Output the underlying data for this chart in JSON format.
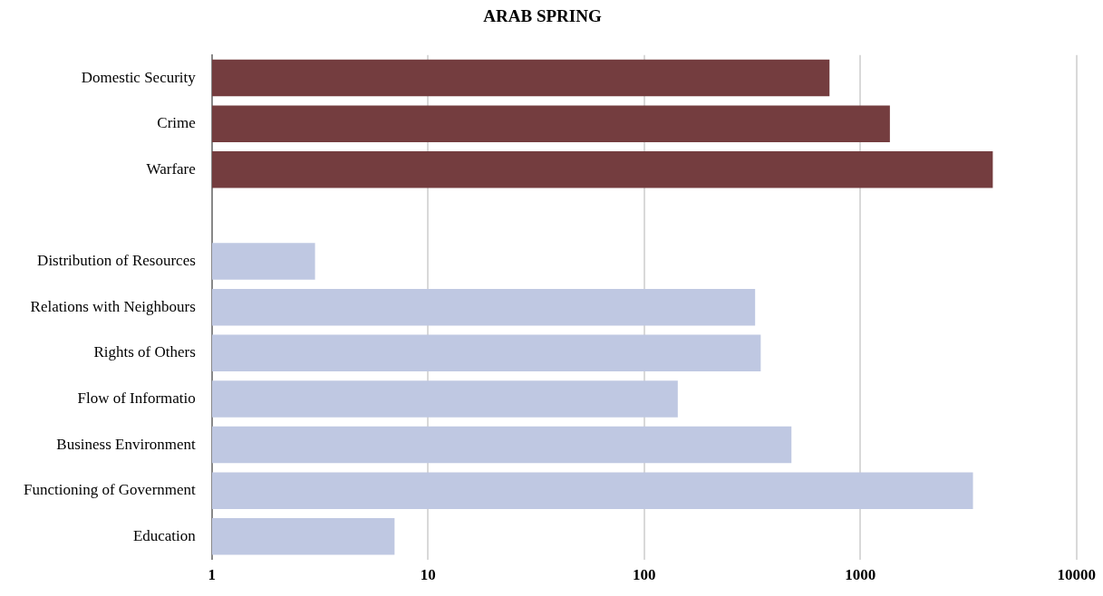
{
  "chart_data": {
    "type": "bar",
    "orientation": "horizontal",
    "title": "ARAB SPRING",
    "categories": [
      "Domestic Security",
      "Crime",
      "Warfare",
      null,
      "Distribution of Resources",
      "Relations with Neighbours",
      "Rights of Others",
      "Flow of Informatio",
      "Business Environment",
      "Functioning of Government",
      "Education"
    ],
    "values": [
      720,
      1370,
      4100,
      null,
      3,
      326,
      346,
      143,
      480,
      3320,
      7
    ],
    "colors": [
      "#743d3f",
      "#743d3f",
      "#743d3f",
      "#743d3f",
      "#bfc8e2",
      "#bfc8e2",
      "#bfc8e2",
      "#bfc8e2",
      "#bfc8e2",
      "#bfc8e2",
      "#bfc8e2"
    ],
    "log": "x",
    "xlim": [
      1,
      10000
    ],
    "xticks": [
      1,
      10,
      100,
      1000,
      10000
    ],
    "grid": "x"
  }
}
